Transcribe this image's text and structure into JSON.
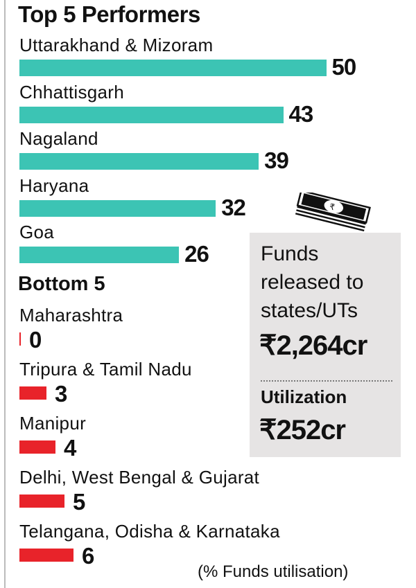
{
  "chart_data": [
    {
      "type": "bar",
      "title": "Top 5 Performers",
      "categories": [
        "Uttarakhand & Mizoram",
        "Chhattisgarh",
        "Nagaland",
        "Haryana",
        "Goa"
      ],
      "values": [
        50,
        43,
        39,
        32,
        26
      ],
      "color": "#3cc4b4"
    },
    {
      "type": "bar",
      "title": "Bottom 5",
      "categories": [
        "Maharashtra",
        "Tripura & Tamil Nadu",
        "Manipur",
        "Delhi, West Bengal & Gujarat",
        "Telangana, Odisha & Karnataka"
      ],
      "values": [
        0,
        3,
        4,
        5,
        6
      ],
      "color": "#e8232a"
    }
  ],
  "note": "(% Funds utilisation)",
  "summary": {
    "funds_label": "Funds released to states/UTs",
    "funds_value": "₹2,264cr",
    "utilization_label": "Utilization",
    "utilization_value": "₹252cr",
    "icon": "money-stack-icon",
    "bg": "#e6e4e4"
  }
}
